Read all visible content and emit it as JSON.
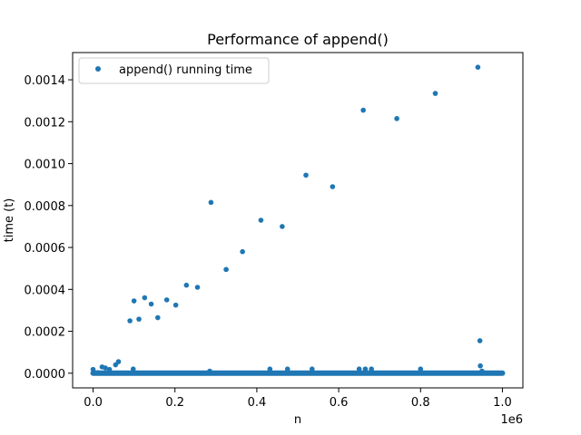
{
  "chart_data": {
    "type": "scatter",
    "title": "Performance of append()",
    "xlabel": "n",
    "ylabel": "time (t)",
    "x_offset_label": "1e6",
    "xlim": [
      -50000,
      1050000
    ],
    "ylim": [
      -7e-05,
      0.00153
    ],
    "x_ticks": [
      0,
      200000,
      400000,
      600000,
      800000,
      1000000
    ],
    "x_tick_labels": [
      "0.0",
      "0.2",
      "0.4",
      "0.6",
      "0.8",
      "1.0"
    ],
    "y_ticks": [
      0,
      0.0002,
      0.0004,
      0.0006,
      0.0008,
      0.001,
      0.0012,
      0.0014
    ],
    "y_tick_labels": [
      "0.0000",
      "0.0002",
      "0.0004",
      "0.0006",
      "0.0008",
      "0.0010",
      "0.0012",
      "0.0014"
    ],
    "legend": {
      "position": "upper-left",
      "entries": [
        "append() running time"
      ]
    },
    "color": "#1f77b4",
    "baseline": {
      "x_start": 0,
      "x_end": 1000000,
      "y": 1e-07
    },
    "series": [
      {
        "name": "append() running time",
        "points": [
          [
            0,
            1.8e-05
          ],
          [
            12000,
            3e-06
          ],
          [
            22000,
            3e-05
          ],
          [
            30000,
            2.5e-05
          ],
          [
            40000,
            1.8e-05
          ],
          [
            55000,
            4e-05
          ],
          [
            62000,
            5.5e-05
          ],
          [
            90000,
            0.00025
          ],
          [
            98000,
            2e-05
          ],
          [
            100000,
            0.000345
          ],
          [
            112000,
            0.000258
          ],
          [
            126000,
            0.00036
          ],
          [
            142000,
            0.00033
          ],
          [
            158000,
            0.000265
          ],
          [
            180000,
            0.00035
          ],
          [
            202000,
            0.000325
          ],
          [
            228000,
            0.00042
          ],
          [
            255000,
            0.00041
          ],
          [
            285000,
            1e-05
          ],
          [
            288000,
            0.000815
          ],
          [
            325000,
            0.000495
          ],
          [
            365000,
            0.00058
          ],
          [
            410000,
            0.00073
          ],
          [
            432000,
            2e-05
          ],
          [
            462000,
            0.0007
          ],
          [
            475000,
            2e-05
          ],
          [
            520000,
            0.000945
          ],
          [
            535000,
            2e-05
          ],
          [
            585000,
            0.00089
          ],
          [
            650000,
            2e-05
          ],
          [
            660000,
            0.001255
          ],
          [
            665000,
            2e-05
          ],
          [
            680000,
            2e-05
          ],
          [
            742000,
            0.001215
          ],
          [
            800000,
            2e-05
          ],
          [
            836000,
            0.001335
          ],
          [
            940000,
            0.00146
          ],
          [
            945000,
            0.000155
          ],
          [
            946000,
            3.5e-05
          ],
          [
            950000,
            1e-05
          ]
        ]
      }
    ]
  }
}
